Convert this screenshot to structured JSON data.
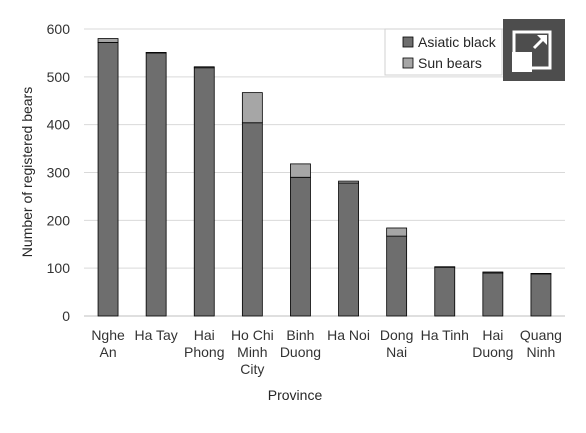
{
  "chart_data": {
    "type": "bar",
    "stacked": true,
    "title": "",
    "xlabel": "Province",
    "ylabel": "Number of registered bears",
    "ylim": [
      0,
      600
    ],
    "yticks": [
      0,
      100,
      200,
      300,
      400,
      500,
      600
    ],
    "grid": true,
    "legend_position": "top-right",
    "categories": [
      [
        "Nghe",
        "An"
      ],
      [
        "Ha Tay"
      ],
      [
        "Hai",
        "Phong"
      ],
      [
        "Ho Chi",
        "Minh",
        "City"
      ],
      [
        "Binh",
        "Duong"
      ],
      [
        "Ha Noi"
      ],
      [
        "Dong",
        "Nai"
      ],
      [
        "Ha Tinh"
      ],
      [
        "Hai",
        "Duong"
      ],
      [
        "Quang",
        "Ninh"
      ]
    ],
    "series": [
      {
        "name": "Asiatic black",
        "color": "#6e6e6e",
        "values": [
          572,
          550,
          519,
          404,
          290,
          278,
          167,
          102,
          90,
          88
        ]
      },
      {
        "name": "Sun bears",
        "color": "#a6a6a6",
        "values": [
          8,
          1,
          2,
          63,
          28,
          4,
          17,
          1,
          2,
          1
        ]
      }
    ]
  },
  "expand_button": {
    "icon": "expand-icon",
    "background": "#4d4d4d"
  }
}
